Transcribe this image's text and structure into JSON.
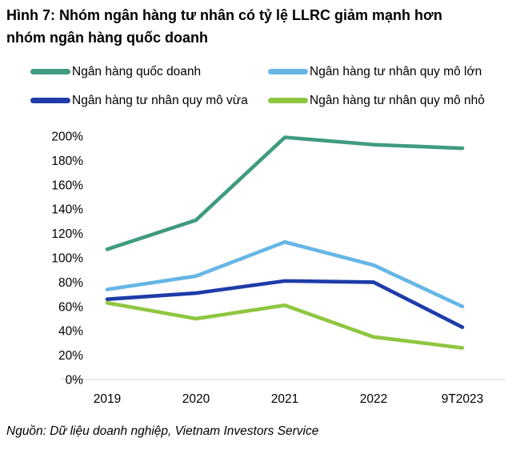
{
  "title": {
    "line1": "Hình 7: Nhóm ngân hàng tư nhân có tỷ lệ LLRC giảm mạnh hơn",
    "line2": "nhóm ngân hàng quốc doanh"
  },
  "source": "Nguồn: Dữ liệu doanh nghiệp, Vietnam Investors Service",
  "colors": {
    "state_owned": "#3F9B80",
    "private_large": "#66B6E6",
    "private_medium": "#1E3CA8",
    "private_small": "#8FC640",
    "axis_line": "#D9D9D9",
    "text": "#000000"
  },
  "chart_data": {
    "type": "line",
    "categories": [
      "2019",
      "2020",
      "2021",
      "2022",
      "9T2023"
    ],
    "series": [
      {
        "name": "Ngân hàng quốc doanh",
        "color": "#3F9B80",
        "values": [
          107,
          131,
          199,
          193,
          190
        ]
      },
      {
        "name": "Ngân hàng tư nhân quy mô lớn",
        "color": "#66B6E6",
        "values": [
          74,
          85,
          113,
          94,
          60
        ]
      },
      {
        "name": "Ngân hàng tư nhân quy mô vừa",
        "color": "#1E3CA8",
        "values": [
          66,
          71,
          81,
          80,
          43
        ]
      },
      {
        "name": "Ngân hàng tư nhân quy mô nhỏ",
        "color": "#8FC640",
        "values": [
          63,
          50,
          61,
          35,
          26
        ]
      }
    ],
    "ylim": [
      0,
      200
    ],
    "ytick_step": 20,
    "ytick_suffix": "%",
    "grid": false,
    "legend_position": "top"
  }
}
